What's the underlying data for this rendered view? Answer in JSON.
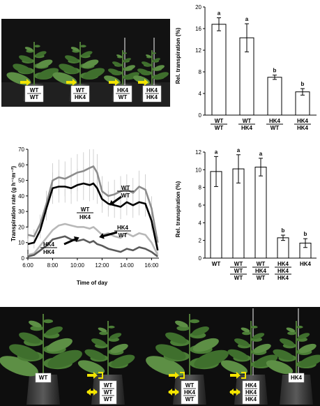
{
  "chart_data": [
    {
      "type": "bar",
      "ylabel": "Rel. transpiration (%)",
      "ylim": [
        0,
        20
      ],
      "yticks": [
        0,
        4,
        8,
        12,
        16,
        20
      ],
      "categories": [
        {
          "top": "WT",
          "bottom": "WT"
        },
        {
          "top": "WT",
          "bottom": "HK4"
        },
        {
          "top": "HK4",
          "bottom": "WT"
        },
        {
          "top": "HK4",
          "bottom": "HK4"
        }
      ],
      "values": [
        16.8,
        14.3,
        7.0,
        4.3
      ],
      "errors": [
        1.2,
        2.6,
        0.4,
        0.6
      ],
      "letters": [
        "a",
        "a",
        "b",
        "b"
      ]
    },
    {
      "type": "bar",
      "ylabel": "Rel. transpiration (%)",
      "ylim": [
        0,
        12
      ],
      "yticks": [
        0,
        2,
        4,
        6,
        8,
        10,
        12
      ],
      "categories": [
        [
          "WT"
        ],
        [
          "WT",
          "WT",
          "WT"
        ],
        [
          "WT",
          "HK4",
          "WT"
        ],
        [
          "HK4",
          "HK4",
          "HK4"
        ],
        [
          "HK4"
        ]
      ],
      "values": [
        9.8,
        10.1,
        10.3,
        2.3,
        1.7
      ],
      "errors": [
        1.7,
        1.6,
        1.0,
        0.3,
        0.5
      ],
      "letters": [
        "a",
        "a",
        "a",
        "b",
        "b"
      ]
    },
    {
      "type": "line",
      "ylabel": "Transpiration rate (g h⁻¹m⁻²)",
      "xlabel": "Time of day",
      "ylim": [
        0,
        70
      ],
      "yticks": [
        0,
        10,
        20,
        30,
        40,
        50,
        60,
        70
      ],
      "xlim": [
        6,
        16.6
      ],
      "xticks": [
        6,
        8,
        10,
        12,
        14,
        16
      ],
      "xtick_labels": [
        "6:00",
        "8:00",
        "10:00",
        "12:00",
        "14:00",
        "16:00"
      ],
      "series": [
        {
          "name": "WT/WT",
          "color": "#8c8c8c",
          "x": [
            6,
            6.5,
            7,
            7.5,
            8,
            8.5,
            9,
            9.5,
            10,
            10.5,
            11,
            11.3,
            11.6,
            12,
            12.5,
            13,
            13.5,
            14,
            14.5,
            15,
            15.5,
            16,
            16.5
          ],
          "y": [
            15,
            14,
            22,
            35,
            50,
            52,
            51,
            53,
            55,
            56,
            58,
            59,
            55,
            43,
            40,
            41,
            43,
            44,
            42,
            46,
            44,
            32,
            10
          ]
        },
        {
          "name": "WT/HK4",
          "color": "#000000",
          "x": [
            6,
            6.5,
            7,
            7.5,
            8,
            8.5,
            9,
            9.5,
            10,
            10.5,
            11,
            11.3,
            11.6,
            12,
            12.5,
            13,
            13.5,
            14,
            14.5,
            15,
            15.5,
            16,
            16.5
          ],
          "y": [
            9,
            10,
            18,
            32,
            45,
            46,
            46,
            45,
            47,
            48,
            47,
            48,
            45,
            38,
            35,
            34,
            33,
            36,
            34,
            36,
            35,
            24,
            5
          ]
        },
        {
          "name": "HK4/WT",
          "color": "#b8b8b8",
          "x": [
            6,
            6.5,
            7,
            7.5,
            8,
            8.5,
            9,
            9.5,
            10,
            10.5,
            11,
            11.3,
            11.6,
            12,
            12.5,
            13,
            13.5,
            14,
            14.5,
            15,
            15.5,
            16,
            16.5
          ],
          "y": [
            2,
            3,
            8,
            13,
            18,
            21,
            22,
            21,
            20,
            20,
            19,
            20,
            18,
            15,
            16,
            14,
            13,
            16,
            14,
            16,
            15,
            10,
            2
          ]
        },
        {
          "name": "HK4/HK4",
          "color": "#5a5a5a",
          "x": [
            6,
            6.5,
            7,
            7.5,
            8,
            8.5,
            9,
            9.5,
            10,
            10.5,
            11,
            11.3,
            11.6,
            12,
            12.5,
            13,
            13.5,
            14,
            14.5,
            15,
            15.5,
            16,
            16.5
          ],
          "y": [
            1,
            2,
            5,
            8,
            12,
            13,
            14,
            12,
            11,
            12,
            10,
            11,
            9,
            8,
            6,
            5,
            4,
            6,
            5,
            7,
            6,
            4,
            1
          ]
        }
      ],
      "legend_labels": [
        {
          "top": "WT",
          "bottom": "WT"
        },
        {
          "top": "WT",
          "bottom": "HK4"
        },
        {
          "top": "HK4",
          "bottom": "WT"
        },
        {
          "top": "HK4",
          "bottom": "HK4"
        }
      ]
    }
  ],
  "photos": {
    "top_labels": [
      {
        "top": "WT",
        "bottom": "WT"
      },
      {
        "top": "WT",
        "bottom": "HK4"
      },
      {
        "top": "HK4",
        "bottom": "WT"
      },
      {
        "top": "HK4",
        "bottom": "HK4"
      }
    ],
    "bottom_labels": [
      [
        "WT"
      ],
      [
        "WT",
        "WT",
        "WT"
      ],
      [
        "WT",
        "HK4",
        "WT"
      ],
      [
        "HK4",
        "HK4",
        "HK4"
      ],
      [
        "HK4"
      ]
    ]
  }
}
